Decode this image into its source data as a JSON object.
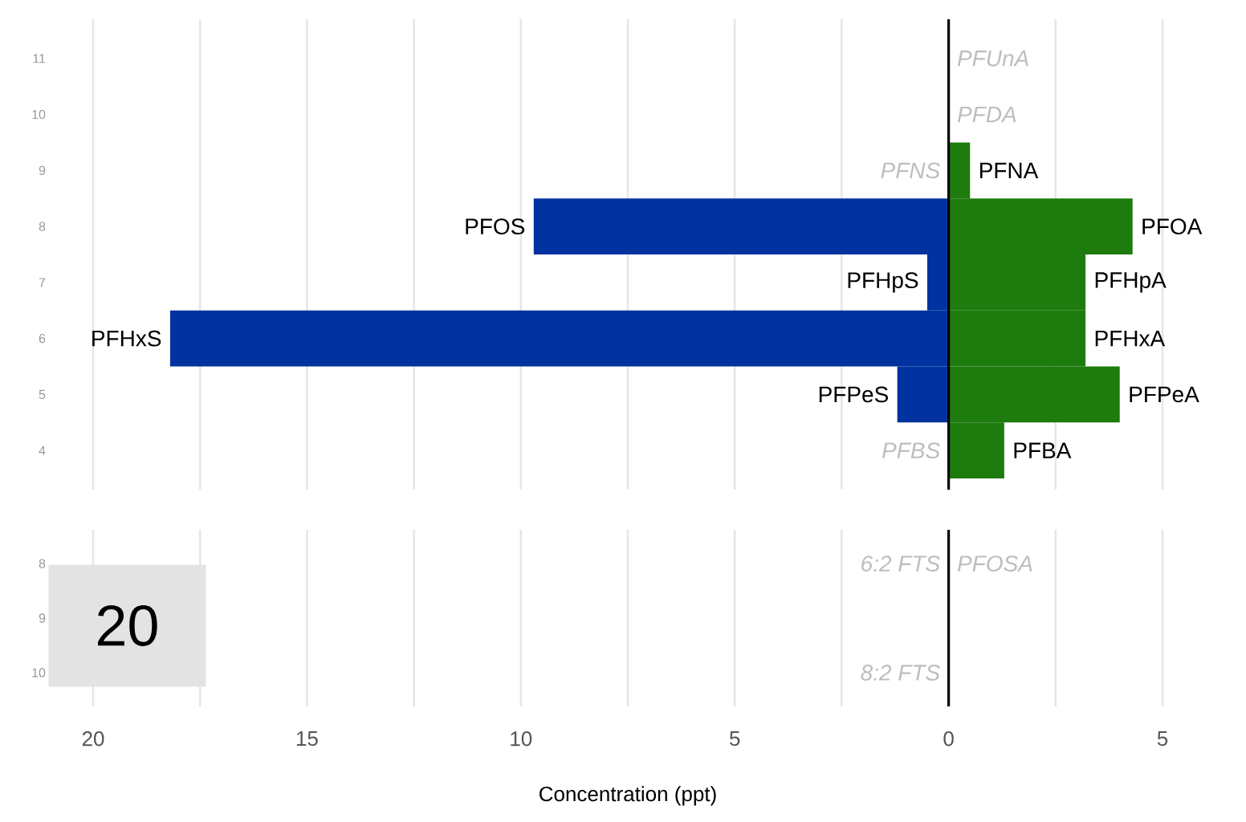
{
  "chart_data": [
    {
      "type": "bar",
      "orientation": "horizontal",
      "categories": [
        "11",
        "10",
        "9",
        "8",
        "7",
        "6",
        "5",
        "4"
      ],
      "series": [
        {
          "color": "#0033a0",
          "values": [
            null,
            null,
            0,
            -9.7,
            -0.5,
            -18.2,
            -1.2,
            0
          ]
        },
        {
          "color": "#1e7b0e",
          "values": [
            0,
            0,
            0.5,
            4.3,
            3.2,
            3.2,
            4.0,
            1.3
          ]
        }
      ],
      "stacked": true,
      "xlim": [
        -20,
        5
      ],
      "xticks": [
        {
          "value": -20,
          "label": null
        },
        {
          "value": -17.5,
          "label": null
        },
        {
          "value": -15,
          "label": null
        },
        {
          "value": -12.5,
          "label": null
        },
        {
          "value": -10,
          "label": null
        },
        {
          "value": -7.5,
          "label": null
        },
        {
          "value": -5,
          "label": null
        },
        {
          "value": -2.5,
          "label": null
        },
        {
          "value": 0,
          "label": null
        },
        {
          "value": 2.5,
          "label": null
        },
        {
          "value": 5,
          "label": null
        }
      ],
      "grid": "x",
      "tick_labels": "y",
      "ref_lines": [
        {
          "axis": "x",
          "value": 0,
          "color": "#000000"
        }
      ],
      "annotations": [
        {
          "text": "PFUnA",
          "x": 0,
          "y": "11"
        },
        {
          "text": "PFDA",
          "x": 0,
          "y": "10"
        },
        {
          "text": "PFNS",
          "x": 0,
          "y": "9"
        },
        {
          "text": "PFNA",
          "x": 0.5,
          "y": "9"
        },
        {
          "text": "PFOS",
          "x": -9.7,
          "y": "8"
        },
        {
          "text": "PFOA",
          "x": 4.3,
          "y": "8"
        },
        {
          "text": "PFHpS",
          "x": -0.5,
          "y": "7"
        },
        {
          "text": "PFHpA",
          "x": 3.2,
          "y": "7"
        },
        {
          "text": "PFHxS",
          "x": -18.2,
          "y": "6"
        },
        {
          "text": "PFHxA",
          "x": 3.2,
          "y": "6"
        },
        {
          "text": "PFPeS",
          "x": -1.2,
          "y": "5"
        },
        {
          "text": "PFPeA",
          "x": 4.0,
          "y": "5"
        },
        {
          "text": "PFBS",
          "x": 0,
          "y": "4"
        },
        {
          "text": "PFBA",
          "x": 1.3,
          "y": "4"
        }
      ]
    },
    {
      "type": "bar",
      "orientation": "horizontal",
      "categories": [
        "8",
        "9",
        "10"
      ],
      "series": [
        {
          "color": "#0033a0",
          "values": [
            0,
            null,
            0
          ]
        },
        {
          "color": "#1e7b0e",
          "values": [
            0,
            null,
            null
          ]
        }
      ],
      "stacked": true,
      "xlim": [
        -20,
        5
      ],
      "xticks": [
        {
          "value": -20,
          "label": "20"
        },
        {
          "value": -17.5,
          "label": null
        },
        {
          "value": -15,
          "label": "15"
        },
        {
          "value": -12.5,
          "label": null
        },
        {
          "value": -10,
          "label": "10"
        },
        {
          "value": -7.5,
          "label": null
        },
        {
          "value": -5,
          "label": "5"
        },
        {
          "value": -2.5,
          "label": null
        },
        {
          "value": 0,
          "label": "0"
        },
        {
          "value": 2.5,
          "label": null
        },
        {
          "value": 5,
          "label": "5"
        }
      ],
      "grid": "x",
      "xlabel": "Concentration (ppt)",
      "ref_lines": [
        {
          "axis": "x",
          "value": 0,
          "color": "#000000"
        }
      ],
      "annotations": [
        {
          "text": "6:2 FTS",
          "x": 0,
          "y": "8"
        },
        {
          "text": "PFOSA",
          "x": 0,
          "y": "8"
        },
        {
          "text": "8:2 FTS",
          "x": 0,
          "y": "10"
        },
        "20"
      ]
    }
  ]
}
